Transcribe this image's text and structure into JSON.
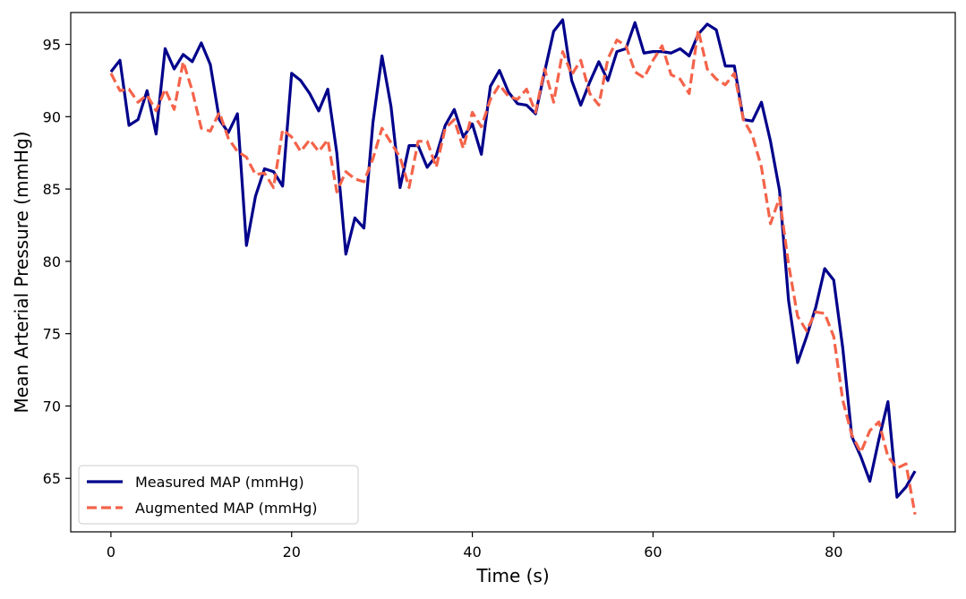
{
  "chart_data": {
    "type": "line",
    "title": "",
    "xlabel": "Time (s)",
    "ylabel": "Mean Arterial Pressure (mmHg)",
    "xlim": [
      -4.45,
      93.45
    ],
    "ylim": [
      61.3,
      97.2
    ],
    "xticks": [
      0,
      20,
      40,
      60,
      80
    ],
    "yticks": [
      65,
      70,
      75,
      80,
      85,
      90,
      95
    ],
    "grid": false,
    "legend_position": "lower-left",
    "x": [
      0,
      1,
      2,
      3,
      4,
      5,
      6,
      7,
      8,
      9,
      10,
      11,
      12,
      13,
      14,
      15,
      16,
      17,
      18,
      19,
      20,
      21,
      22,
      23,
      24,
      25,
      26,
      27,
      28,
      29,
      30,
      31,
      32,
      33,
      34,
      35,
      36,
      37,
      38,
      39,
      40,
      41,
      42,
      43,
      44,
      45,
      46,
      47,
      48,
      49,
      50,
      51,
      52,
      53,
      54,
      55,
      56,
      57,
      58,
      59,
      60,
      61,
      62,
      63,
      64,
      65,
      66,
      67,
      68,
      69,
      70,
      71,
      72,
      73,
      74,
      75,
      76,
      77,
      78,
      79,
      80,
      81,
      82,
      83,
      84,
      85,
      86,
      87,
      88,
      89
    ],
    "series": [
      {
        "name": "Measured MAP (mmHg)",
        "color": "#00008b",
        "style": "solid",
        "values": [
          93.1,
          93.9,
          89.4,
          89.8,
          91.8,
          88.8,
          94.7,
          93.3,
          94.3,
          93.8,
          95.1,
          93.6,
          89.8,
          88.9,
          90.2,
          81.1,
          84.5,
          86.4,
          86.2,
          85.2,
          93.0,
          92.5,
          91.6,
          90.4,
          91.9,
          87.5,
          80.5,
          83.0,
          82.3,
          89.6,
          94.2,
          90.7,
          85.1,
          88.0,
          88.0,
          86.5,
          87.3,
          89.4,
          90.5,
          88.6,
          89.5,
          87.4,
          92.1,
          93.2,
          91.7,
          90.9,
          90.8,
          90.2,
          93.1,
          95.9,
          96.7,
          92.5,
          90.8,
          92.4,
          93.8,
          92.5,
          94.5,
          94.7,
          96.5,
          94.4,
          94.5,
          94.5,
          94.4,
          94.7,
          94.2,
          95.7,
          96.4,
          96.0,
          93.5,
          93.5,
          89.8,
          89.7,
          91.0,
          88.3,
          84.9,
          77.3,
          73.0,
          74.8,
          76.8,
          79.5,
          78.7,
          74.0,
          67.9,
          66.5,
          64.8,
          67.7,
          70.3,
          63.7,
          64.4,
          65.5
        ]
      },
      {
        "name": "Augmented MAP (mmHg)",
        "color": "#f4634a",
        "style": "dashed",
        "values": [
          93.0,
          91.8,
          91.9,
          91.0,
          91.5,
          90.4,
          91.9,
          90.5,
          93.8,
          91.8,
          89.2,
          89.0,
          90.3,
          88.5,
          87.6,
          87.2,
          86.0,
          86.1,
          85.1,
          89.1,
          88.6,
          87.6,
          88.4,
          87.6,
          88.4,
          84.8,
          86.2,
          85.7,
          85.5,
          87.1,
          89.2,
          88.2,
          87.2,
          85.1,
          88.3,
          88.3,
          86.5,
          89.2,
          89.8,
          87.8,
          90.3,
          89.3,
          91.2,
          92.2,
          91.4,
          91.2,
          91.9,
          90.3,
          93.3,
          91.0,
          94.5,
          92.9,
          93.9,
          91.6,
          90.8,
          94.0,
          95.3,
          94.9,
          93.1,
          92.7,
          93.9,
          94.9,
          92.9,
          92.6,
          91.6,
          96.0,
          93.3,
          92.6,
          92.2,
          93.0,
          89.8,
          88.7,
          86.5,
          82.6,
          84.4,
          79.8,
          76.2,
          75.2,
          76.5,
          76.4,
          74.8,
          70.4,
          68.0,
          66.8,
          68.3,
          68.9,
          66.5,
          65.7,
          66.0,
          62.5
        ]
      }
    ]
  }
}
